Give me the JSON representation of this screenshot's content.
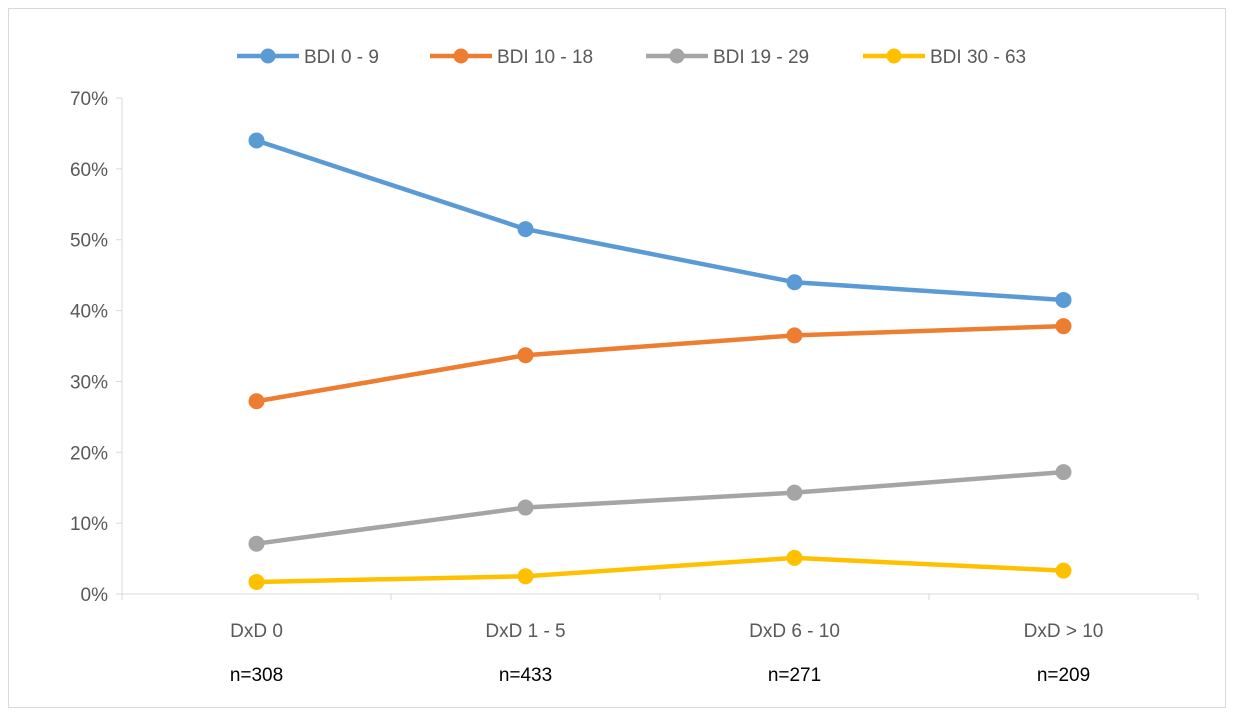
{
  "chart_data": {
    "type": "line",
    "title": "",
    "xlabel": "",
    "ylabel": "",
    "categories": [
      "DxD 0",
      "DxD 1 - 5",
      "DxD 6 - 10",
      "DxD > 10"
    ],
    "sample_sizes": [
      "n=308",
      "n=433",
      "n=271",
      "n=209"
    ],
    "y_ticks": [
      "0%",
      "10%",
      "20%",
      "30%",
      "40%",
      "50%",
      "60%",
      "70%"
    ],
    "ylim": [
      0,
      70
    ],
    "grid": false,
    "legend_position": "top",
    "series": [
      {
        "name": "BDI 0 - 9",
        "color": "#5b9bd5",
        "values": [
          64,
          51.5,
          44,
          41.5
        ]
      },
      {
        "name": "BDI 10 - 18",
        "color": "#ed7d31",
        "values": [
          27.2,
          33.7,
          36.5,
          37.8
        ]
      },
      {
        "name": "BDI 19 - 29",
        "color": "#a5a5a5",
        "values": [
          7.1,
          12.2,
          14.3,
          17.2
        ]
      },
      {
        "name": "BDI 30 - 63",
        "color": "#ffc000",
        "values": [
          1.7,
          2.5,
          5.1,
          3.3
        ]
      }
    ]
  }
}
